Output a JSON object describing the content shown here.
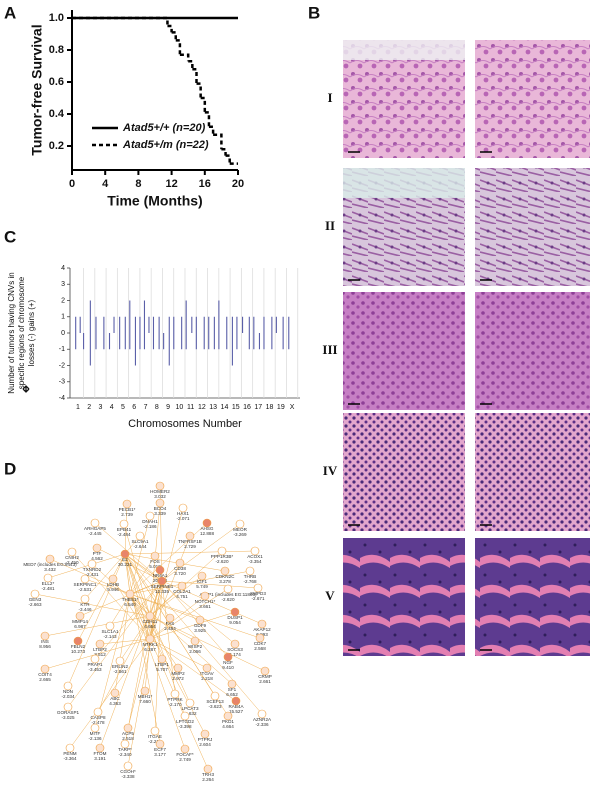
{
  "panel_labels": [
    "A",
    "B",
    "C",
    "D"
  ],
  "chart_data": [
    {
      "type": "line",
      "step": true,
      "xlabel": "Time (Months)",
      "ylabel": "Tumor-free Survival",
      "xlim": [
        0,
        20
      ],
      "xticks": [
        0,
        4,
        8,
        12,
        16,
        20
      ],
      "ylim": [
        0.05,
        1.05
      ],
      "yticks": [
        0.2,
        0.4,
        0.6,
        0.8,
        {
          "value": 1,
          "label": "1.0"
        }
      ],
      "legend": "lower left",
      "series": [
        {
          "name": "Atad5+/+ (n=20)",
          "color": "#000000",
          "style": "solid",
          "x": [
            0,
            20
          ],
          "values": [
            1,
            1
          ]
        },
        {
          "name": "Atad5+/m (n=22)",
          "color": "#000000",
          "style": "dashed",
          "x": [
            0,
            11.5,
            12,
            12.5,
            13,
            14,
            14.5,
            15,
            15.5,
            16,
            16.5,
            17,
            18,
            18.5,
            19,
            20
          ],
          "values": [
            1,
            0.95,
            0.91,
            0.86,
            0.77,
            0.73,
            0.68,
            0.59,
            0.5,
            0.41,
            0.32,
            0.27,
            0.18,
            0.14,
            0.09,
            0.09
          ]
        }
      ]
    },
    {
      "type": "bar",
      "xlabel": "Chromosomes Number",
      "ylabel": [
        "Number of tumors having CNVs in",
        "specific regions of chromosome",
        "losses (-)       gains (+)"
      ],
      "xlim": [
        0.3,
        20.7
      ],
      "xticks": [
        1,
        2,
        3,
        4,
        5,
        6,
        7,
        8,
        9,
        10,
        11,
        12,
        13,
        14,
        15,
        16,
        17,
        18,
        19,
        {
          "value": 20,
          "label": "X"
        }
      ],
      "ylim": [
        -4,
        4
      ],
      "yticks": [
        -4,
        -3,
        -2,
        -1,
        0,
        1,
        2,
        3,
        4
      ],
      "grid": true,
      "x": [
        0.8,
        1.2,
        1.5,
        2.1,
        2.6,
        3.3,
        3.8,
        4.2,
        4.7,
        5.2,
        5.6,
        6.1,
        6.5,
        6.9,
        7.3,
        7.7,
        8.2,
        8.6,
        9.1,
        9.5,
        10.2,
        10.6,
        11.1,
        11.5,
        12.2,
        12.6,
        13.1,
        13.5,
        14.2,
        14.7,
        15.1,
        15.6,
        16.2,
        16.6,
        17.1,
        17.5,
        18.2,
        18.6,
        19.2,
        19.7
      ],
      "series": [
        {
          "color": "#5a5fa8",
          "values": [
            1,
            1,
            null,
            2,
            1,
            1,
            null,
            1,
            1,
            1,
            2,
            1,
            1,
            2,
            1,
            1,
            1,
            null,
            1,
            1,
            1,
            2,
            1,
            1,
            1,
            1,
            1,
            2,
            1,
            1,
            1,
            1,
            1,
            1,
            null,
            1,
            1,
            1,
            1,
            1
          ]
        },
        {
          "color": "#5a5fa8",
          "values": [
            -1,
            null,
            -1,
            -2,
            -1,
            -1,
            -1,
            null,
            -1,
            -1,
            -1,
            -2,
            -1,
            -1,
            null,
            -1,
            -1,
            -1,
            -2,
            -1,
            -1,
            -1,
            null,
            -1,
            -1,
            -1,
            -1,
            -1,
            -1,
            -2,
            -1,
            null,
            -1,
            -1,
            -1,
            -1,
            -1,
            null,
            -1,
            -1
          ]
        }
      ]
    }
  ],
  "histology": {
    "rows": [
      "I",
      "II",
      "III",
      "IV",
      "V"
    ]
  },
  "network": {
    "nodes": [
      {
        "label": "HOMER2",
        "value": "3.032"
      },
      {
        "label": "BCO4",
        "value": "3.339"
      },
      {
        "label": "PECB1*",
        "value": "2.739"
      },
      {
        "label": "DNAH1",
        "value": "-2.186"
      },
      {
        "label": "HAX1",
        "value": "-2.071"
      },
      {
        "label": "ARHGAP5",
        "value": "-2.445"
      },
      {
        "label": "EPB41",
        "value": "-2.484"
      },
      {
        "label": "SLC9A1",
        "value": "-2.644"
      },
      {
        "label": "AHSG",
        "value": "12.888"
      },
      {
        "label": "TNFRSF1B",
        "value": "2.729"
      },
      {
        "label": "MEOR",
        "value": "-3.269"
      },
      {
        "label": "PPP1R3B*",
        "value": "-2.620"
      },
      {
        "label": "ACOX1",
        "value": "-3.354"
      },
      {
        "label": "MED7 (includes EG:9443)",
        "value": "3.432"
      },
      {
        "label": "CNIH2",
        "value": "-2.450"
      },
      {
        "label": "PTF",
        "value": "4.562"
      },
      {
        "label": "TXNRD2",
        "value": "-2.431"
      },
      {
        "label": "E2",
        "value": "30.221"
      },
      {
        "label": "FOS",
        "value": "5.019"
      },
      {
        "label": "NR4A1",
        "value": "20.548"
      },
      {
        "label": "CD38",
        "value": "3.720"
      },
      {
        "label": "IGF1",
        "value": "5.749"
      },
      {
        "label": "ELL2*",
        "value": "-2.481"
      },
      {
        "label": "SERPINC1",
        "value": "-2.531"
      },
      {
        "label": "LDHB",
        "value": "5.946"
      },
      {
        "label": "SERPINE1",
        "value": "12.335"
      },
      {
        "label": "COL2A1",
        "value": "4.751"
      },
      {
        "label": "CDKN2C",
        "value": "3.278"
      },
      {
        "label": "THRB",
        "value": "-2.768"
      },
      {
        "label": "APLP1 (includes EG:11803)",
        "value": "-2.620"
      },
      {
        "label": "SMPD3",
        "value": "-2.671"
      },
      {
        "label": "GEN3",
        "value": "-2.663"
      },
      {
        "label": "KTR",
        "value": "-3.446"
      },
      {
        "label": "THBS1*",
        "value": "6.540"
      },
      {
        "label": "NOTCH1*",
        "value": "3.661"
      },
      {
        "label": "MMP14",
        "value": "6.987"
      },
      {
        "label": "CDH11",
        "value": "4.654"
      },
      {
        "label": "FAS",
        "value": "2.484"
      },
      {
        "label": "GDF9",
        "value": "3.925"
      },
      {
        "label": "DUSP1",
        "value": "9.054"
      },
      {
        "label": "AKAP12",
        "value": "6.993"
      },
      {
        "label": "INS",
        "value": "8.956"
      },
      {
        "label": "FBLN2",
        "value": "10.273"
      },
      {
        "label": "SLC1A1",
        "value": "-2.143"
      },
      {
        "label": "LTBP2",
        "value": "3.512"
      },
      {
        "label": "NTRK1",
        "value": "6.287"
      },
      {
        "label": "WISP2",
        "value": "2.066"
      },
      {
        "label": "SOCS3",
        "value": "5.174"
      },
      {
        "label": "CDK7",
        "value": "2.568"
      },
      {
        "label": "COIT4",
        "value": "2.665"
      },
      {
        "label": "PRAP1",
        "value": "-3.453"
      },
      {
        "label": "ERLIN2",
        "value": "-2.561"
      },
      {
        "label": "LTBP1",
        "value": "5.707"
      },
      {
        "label": "MMP2",
        "value": "2.972"
      },
      {
        "label": "ITGAV",
        "value": "2.218"
      },
      {
        "label": "NGF",
        "value": "9.410"
      },
      {
        "label": "CRMP",
        "value": "2.661"
      },
      {
        "label": "NDN",
        "value": "-2.034"
      },
      {
        "label": "ABC",
        "value": "4.363"
      },
      {
        "label": "MBH1*",
        "value": "7.660"
      },
      {
        "label": "PTPRK",
        "value": "-2.170"
      },
      {
        "label": "LPCAT3",
        "value": "-2.632"
      },
      {
        "label": "SCEF13",
        "value": "-3.623"
      },
      {
        "label": "SF1",
        "value": "6.652"
      },
      {
        "label": "RAB4A",
        "value": "15.527"
      },
      {
        "label": "GORASP1",
        "value": "-3.025"
      },
      {
        "label": "CASP8",
        "value": "-2.478"
      },
      {
        "label": "PKD1",
        "value": "4.664"
      },
      {
        "label": "MITF",
        "value": "-2.136"
      },
      {
        "label": "ACP5",
        "value": "2.518"
      },
      {
        "label": "ITGAE",
        "value": "-2.216"
      },
      {
        "label": "LPTGD2",
        "value": "-3.398"
      },
      {
        "label": "AZNR2A",
        "value": "-2.336"
      },
      {
        "label": "PTPRJ",
        "value": "2.604"
      },
      {
        "label": "PENM",
        "value": "-3.364"
      },
      {
        "label": "FTOM",
        "value": "3.191"
      },
      {
        "label": "TARP*",
        "value": "-2.340"
      },
      {
        "label": "ECF7",
        "value": "3.177"
      },
      {
        "label": "FOCAF*",
        "value": "2.749"
      },
      {
        "label": "TRH3",
        "value": "2.264"
      },
      {
        "label": "CGOH*",
        "value": "-3.338"
      }
    ]
  }
}
